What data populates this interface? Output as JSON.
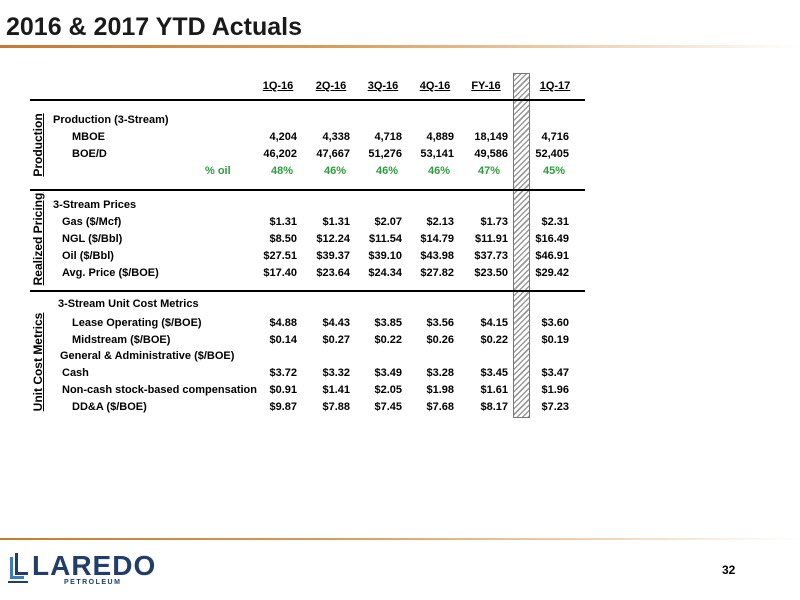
{
  "title": "2016 & 2017 YTD Actuals",
  "page_number": "32",
  "logo": {
    "word": "LAREDO",
    "sub": "PETROLEUM"
  },
  "columns": [
    "1Q-16",
    "2Q-16",
    "3Q-16",
    "4Q-16",
    "FY-16",
    "1Q-17"
  ],
  "sections": {
    "production": "Production",
    "pricing": "Realized Pricing",
    "costs": "Unit Cost Metrics"
  },
  "rows": {
    "prod_header": "Production (3-Stream)",
    "mboe": {
      "label": "MBOE",
      "values": [
        "4,204",
        "4,338",
        "4,718",
        "4,889",
        "18,149",
        "4,716"
      ]
    },
    "boed": {
      "label": "BOE/D",
      "values": [
        "46,202",
        "47,667",
        "51,276",
        "53,141",
        "49,586",
        "52,405"
      ]
    },
    "oil_pct": {
      "label": "% oil",
      "values": [
        "48%",
        "46%",
        "46%",
        "46%",
        "47%",
        "45%"
      ]
    },
    "price_header": "3-Stream Prices",
    "gas": {
      "label": "Gas ($/Mcf)",
      "values": [
        "$1.31",
        "$1.31",
        "$2.07",
        "$2.13",
        "$1.73",
        "$2.31"
      ]
    },
    "ngl": {
      "label": "NGL ($/Bbl)",
      "values": [
        "$8.50",
        "$12.24",
        "$11.54",
        "$14.79",
        "$11.91",
        "$16.49"
      ]
    },
    "oil": {
      "label": "Oil ($/Bbl)",
      "values": [
        "$27.51",
        "$39.37",
        "$39.10",
        "$43.98",
        "$37.73",
        "$46.91"
      ]
    },
    "avg": {
      "label": "Avg. Price ($/BOE)",
      "values": [
        "$17.40",
        "$23.64",
        "$24.34",
        "$27.82",
        "$23.50",
        "$29.42"
      ]
    },
    "cost_header": "3-Stream Unit Cost Metrics",
    "loe": {
      "label": "Lease Operating ($/BOE)",
      "values": [
        "$4.88",
        "$4.43",
        "$3.85",
        "$3.56",
        "$4.15",
        "$3.60"
      ]
    },
    "mid": {
      "label": "Midstream ($/BOE)",
      "values": [
        "$0.14",
        "$0.27",
        "$0.22",
        "$0.26",
        "$0.22",
        "$0.19"
      ]
    },
    "ga_header": "General & Administrative ($/BOE)",
    "cash": {
      "label": "Cash",
      "values": [
        "$3.72",
        "$3.32",
        "$3.49",
        "$3.28",
        "$3.45",
        "$3.47"
      ]
    },
    "noncash": {
      "label": "Non-cash stock-based compensation",
      "values": [
        "$0.91",
        "$1.41",
        "$2.05",
        "$1.98",
        "$1.61",
        "$1.96"
      ]
    },
    "dda": {
      "label": "DD&A ($/BOE)",
      "values": [
        "$9.87",
        "$7.88",
        "$7.45",
        "$7.68",
        "$8.17",
        "$7.23"
      ]
    }
  }
}
